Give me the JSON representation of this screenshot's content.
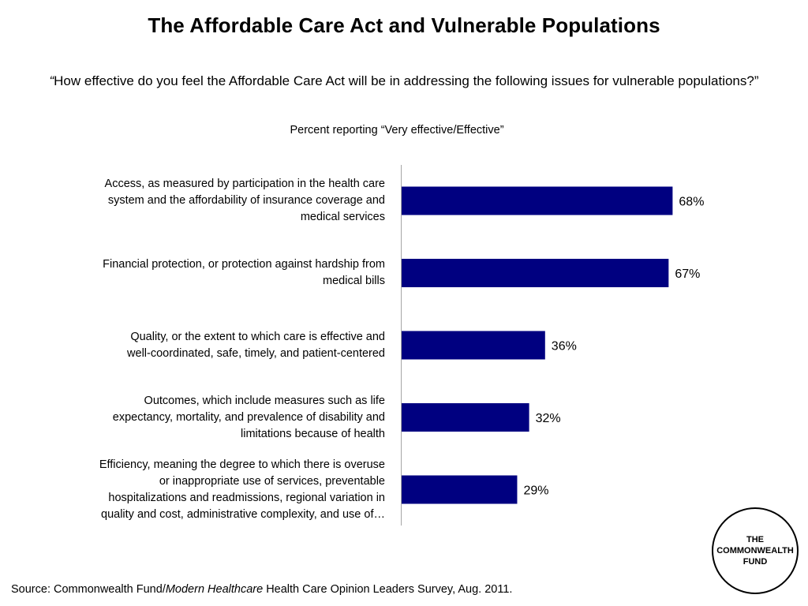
{
  "title": "The Affordable Care Act and Vulnerable Populations",
  "question": {
    "open_quote": "“",
    "text": "How effective do you feel the Affordable Care Act will be in addressing the following issues for vulnerable populations?”"
  },
  "chart_data": {
    "type": "bar",
    "orientation": "horizontal",
    "subtitle": "Percent reporting “Very effective/Effective”",
    "categories": [
      [
        "Access, as measured by participation in the health care",
        "system and the affordability of insurance coverage and",
        "medical services"
      ],
      [
        "Financial protection, or protection against hardship from",
        "medical bills"
      ],
      [
        "Quality, or the extent to which care is effective and",
        "well-coordinated, safe, timely, and patient-centered"
      ],
      [
        "Outcomes, which include measures such as life",
        "expectancy, mortality, and prevalence of disability and",
        "limitations because of health"
      ],
      [
        "Efficiency, meaning the degree to which there is overuse",
        "or inappropriate use of services, preventable",
        "hospitalizations and readmissions, regional variation in",
        "quality and cost, administrative complexity, and use of…"
      ]
    ],
    "values": [
      68,
      67,
      36,
      32,
      29
    ],
    "data_labels": [
      "68%",
      "67%",
      "36%",
      "32%",
      "29%"
    ],
    "xlim": [
      0,
      100
    ],
    "bar_color": "#000080",
    "grid": false,
    "legend": "none"
  },
  "footer": {
    "source_prefix": "Source: Commonwealth Fund/",
    "source_italic": "Modern Healthcare",
    "source_suffix": " Health Care Opinion Leaders Survey, Aug. 2011."
  },
  "logo": {
    "line1": "THE",
    "line2": "COMMONWEALTH",
    "line3": "FUND"
  }
}
